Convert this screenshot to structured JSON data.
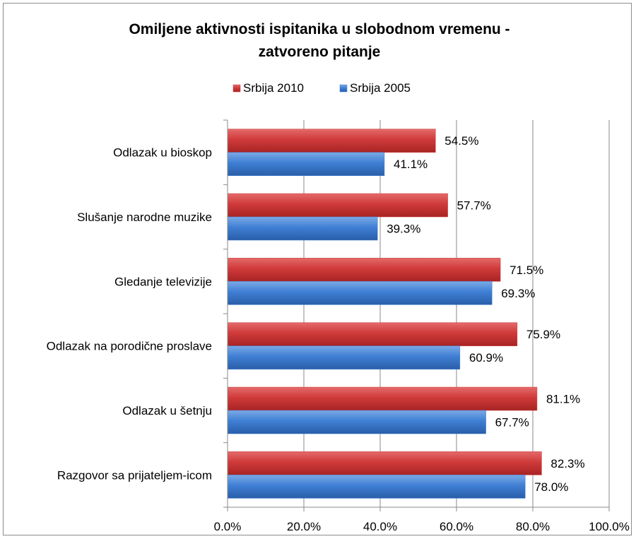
{
  "chart_data": {
    "type": "bar",
    "orientation": "horizontal",
    "title": "Omiljene aktivnosti ispitanika u slobodnom vremenu - zatvoreno pitanje",
    "title_lines": [
      "Omiljene aktivnosti ispitanika u slobodnom vremenu -",
      "zatvoreno pitanje"
    ],
    "categories": [
      "Odlazak u bioskop",
      "Slušanje narodne muzike",
      "Gledanje televizije",
      "Odlazak na porodične proslave",
      "Odlazak u šetnju",
      "Razgovor sa prijateljem-icom"
    ],
    "series": [
      {
        "name": "Srbija 2010",
        "color": "#d03a3a",
        "values": [
          54.5,
          57.7,
          71.5,
          75.9,
          81.1,
          82.3
        ],
        "labels": [
          "54.5%",
          "57.7%",
          "71.5%",
          "75.9%",
          "81.1%",
          "82.3%"
        ]
      },
      {
        "name": "Srbija 2005",
        "color": "#3f7fd4",
        "values": [
          41.1,
          39.3,
          69.3,
          60.9,
          67.7,
          78.0
        ],
        "labels": [
          "41.1%",
          "39.3%",
          "69.3%",
          "60.9%",
          "67.7%",
          "78.0%"
        ]
      }
    ],
    "xlim": [
      0,
      100
    ],
    "xticks": [
      0,
      20,
      40,
      60,
      80,
      100
    ],
    "xtick_labels": [
      "0.0%",
      "20.0%",
      "40.0%",
      "60.0%",
      "80.0%",
      "100.0%"
    ],
    "grid": true,
    "legend_position": "top"
  }
}
